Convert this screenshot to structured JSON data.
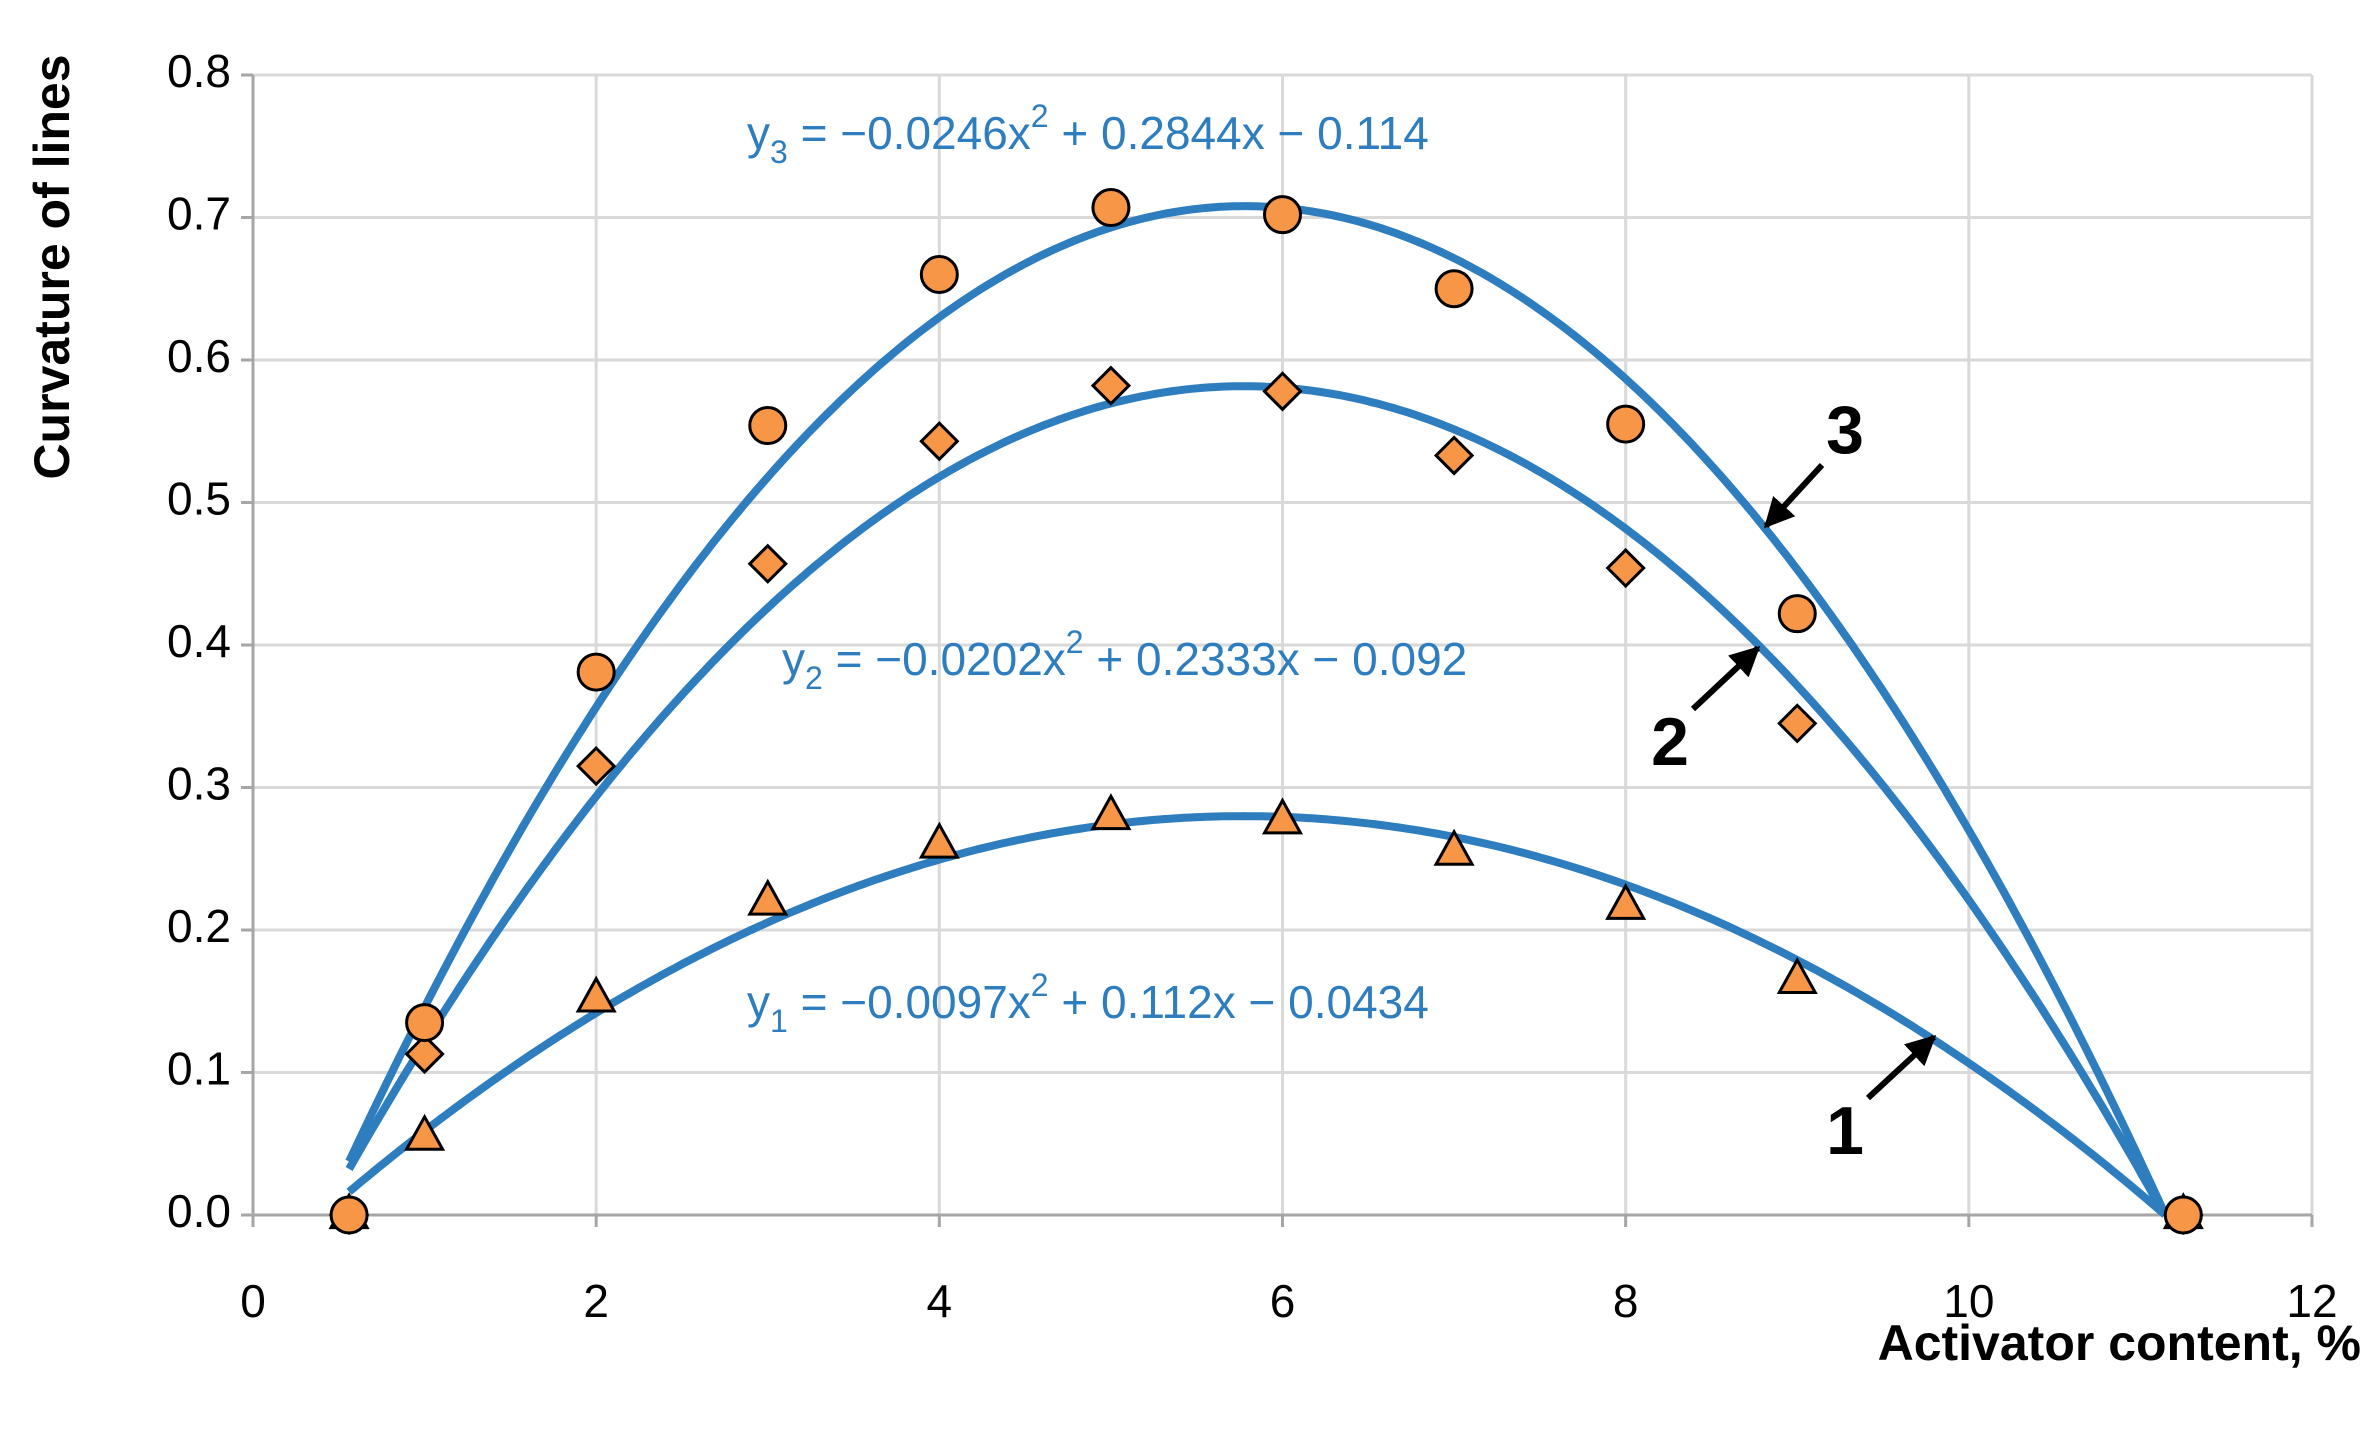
{
  "chart_data": {
    "type": "scatter",
    "x_label": "Activator content, %",
    "y_label": "Curvature of lines",
    "xlim": [
      0,
      12
    ],
    "ylim": [
      0,
      0.8
    ],
    "xticks": [
      0,
      2,
      4,
      6,
      8,
      10,
      12
    ],
    "yticks": [
      {
        "value": 0,
        "label": "0.0"
      },
      0.1,
      0.2,
      0.3,
      0.4,
      0.5,
      0.6,
      0.7,
      0.8
    ],
    "grid": true,
    "marker_color": "#f79646",
    "marker_edge": "#000000",
    "line_color": "#2e7dbf",
    "series": [
      {
        "marker": "triangle",
        "x": [
          0.56,
          1,
          2,
          3,
          4,
          5,
          6,
          7,
          8,
          9,
          11.25
        ],
        "values": [
          0,
          0.055,
          0.152,
          0.22,
          0.26,
          0.28,
          0.277,
          0.255,
          0.217,
          0.165,
          0
        ],
        "trendline": {
          "coefficients": [
            -0.0097,
            0.112,
            -0.0434
          ],
          "equation": [
            "y",
            "1",
            " = −0.0097x",
            "2",
            " + 0.112x − 0.0434"
          ]
        }
      },
      {
        "marker": "diamond",
        "x": [
          0.56,
          1,
          2,
          3,
          4,
          5,
          6,
          7,
          8,
          9,
          11.25
        ],
        "values": [
          0,
          0.113,
          0.315,
          0.457,
          0.543,
          0.582,
          0.578,
          0.533,
          0.454,
          0.345,
          0
        ],
        "trendline": {
          "coefficients": [
            -0.0202,
            0.2333,
            -0.092
          ],
          "equation": [
            "y",
            "2",
            " = −0.0202x",
            "2",
            " + 0.2333x − 0.092"
          ]
        }
      },
      {
        "marker": "circle",
        "x": [
          0.56,
          1,
          2,
          3,
          4,
          5,
          6,
          7,
          8,
          9,
          11.25
        ],
        "values": [
          0,
          0.135,
          0.381,
          0.554,
          0.66,
          0.707,
          0.702,
          0.65,
          0.555,
          0.422,
          0
        ],
        "trendline": {
          "coefficients": [
            -0.0246,
            0.2844,
            -0.114
          ],
          "equation": [
            "y",
            "3",
            " = −0.0246x",
            "2",
            " + 0.2844x − 0.114"
          ]
        }
      }
    ],
    "annotations": [
      {
        "text": "1"
      },
      {
        "text": "2"
      },
      {
        "text": "3"
      }
    ]
  }
}
